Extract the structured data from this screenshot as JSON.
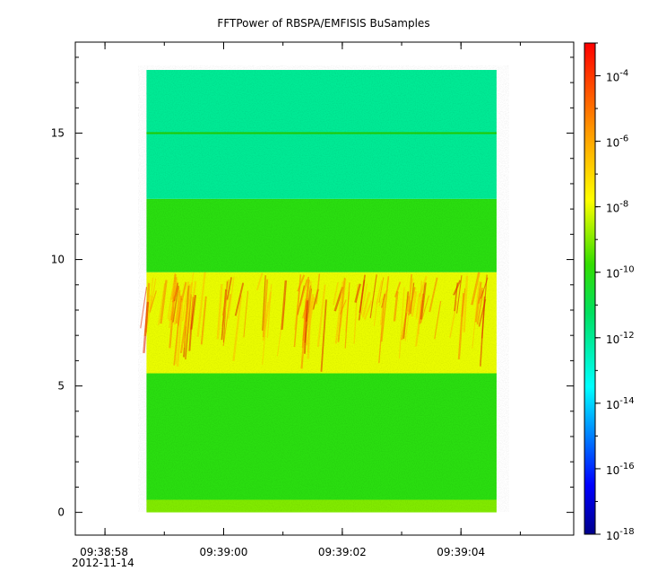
{
  "chart_data": {
    "type": "heatmap",
    "title": "FFTPower of RBSPA/EMFISIS  BuSamples",
    "xlabel": "",
    "ylabel": "",
    "x_ticks": [
      "09:38:58",
      "09:39:00",
      "09:39:02",
      "09:39:04"
    ],
    "x_first_tick_date": "2012-11-14",
    "x_range": [
      "09:38:57.5",
      "09:39:05.9"
    ],
    "y_range": [
      -0.9,
      18.6
    ],
    "y_ticks": [
      0,
      5,
      10,
      15
    ],
    "data_x_range": [
      "09:38:58.7",
      "09:39:04.6"
    ],
    "data_y_range": [
      0.0,
      17.5
    ],
    "colorbar": {
      "scale": "log",
      "range": [
        1e-18,
        0.001
      ],
      "tick_values": [
        -18,
        -16,
        -14,
        -12,
        -10,
        -8,
        -6,
        -4
      ],
      "tick_base": "10",
      "tick_exponents": [
        "-18",
        "-16",
        "-14",
        "-12",
        "-10",
        "-8",
        "-6",
        "-4"
      ],
      "colormap": "rainbow (blue → cyan → green → yellow → red)"
    },
    "bands": [
      {
        "y_from": 0.0,
        "y_to": 0.5,
        "level": "1e-9"
      },
      {
        "y_from": 0.5,
        "y_to": 5.5,
        "level": "1e-10"
      },
      {
        "y_from": 5.5,
        "y_to": 9.5,
        "level": "1e-8"
      },
      {
        "y_from": 9.5,
        "y_to": 12.4,
        "level": "1e-10"
      },
      {
        "y_from": 12.4,
        "y_to": 17.5,
        "level": "1e-12"
      }
    ],
    "line_at_y": 15.0,
    "grid": false
  }
}
